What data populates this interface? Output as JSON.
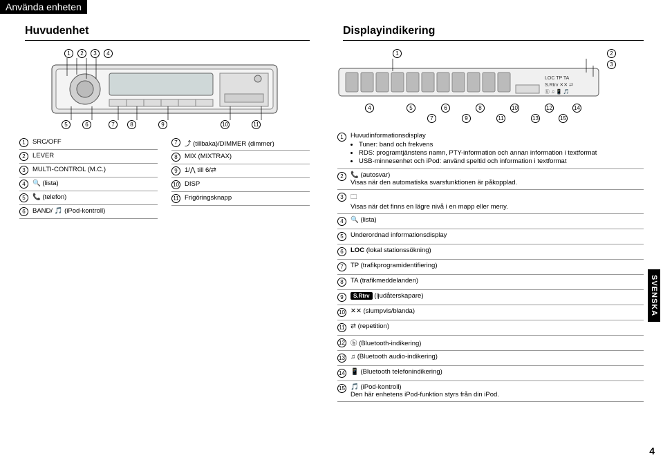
{
  "header": {
    "using_device": "Använda enheten"
  },
  "left": {
    "title": "Huvudenhet",
    "callouts_top": [
      "1",
      "2",
      "3",
      "4"
    ],
    "callouts_bottom": [
      "5",
      "6",
      "7",
      "8",
      "9",
      "10",
      "11"
    ],
    "specs_left": [
      {
        "n": "1",
        "t": "SRC/OFF"
      },
      {
        "n": "2",
        "t": "LEVER"
      },
      {
        "n": "3",
        "t": "MULTI-CONTROL (M.C.)"
      },
      {
        "n": "4",
        "t": "🔍 (lista)"
      },
      {
        "n": "5",
        "t": "📞 (telefon)"
      },
      {
        "n": "6",
        "t": "BAND/ 🎵 (iPod-kontroll)"
      }
    ],
    "specs_right": [
      {
        "n": "7",
        "t": "⤴ (tillbaka)/DIMMER (dimmer)"
      },
      {
        "n": "8",
        "t": "MIX (MIXTRAX)"
      },
      {
        "n": "9",
        "t": "1/⋀ till 6/⇄"
      },
      {
        "n": "10",
        "t": "DISP"
      },
      {
        "n": "11",
        "t": "Frigöringsknapp"
      }
    ]
  },
  "right": {
    "title": "Displayindikering",
    "segments": "88888888888",
    "callouts_top": [
      "1",
      "2",
      "3"
    ],
    "callouts_bottom_u": [
      "4",
      "5",
      "6",
      "8",
      "10",
      "12",
      "14"
    ],
    "callouts_bottom_l": [
      "7",
      "9",
      "11",
      "13",
      "15"
    ],
    "indicators": "LOC TP TA",
    "items": [
      {
        "n": "1",
        "title": "Huvudinformationsdisplay",
        "bullets": [
          "Tuner: band och frekvens",
          "RDS: programtjänstens namn, PTY-information och annan information i textformat",
          "USB-minnesenhet och iPod: använd speltid och information i textformat"
        ]
      },
      {
        "n": "2",
        "title": "📞 (autosvar)",
        "sub": "Visas när den automatiska svarsfunktionen är påkopplad."
      },
      {
        "n": "3",
        "title": "🗀",
        "sub": "Visas när det finns en lägre nivå i en mapp eller meny."
      },
      {
        "n": "4",
        "title": "🔍 (lista)"
      },
      {
        "n": "5",
        "title": "Underordnad informationsdisplay"
      },
      {
        "n": "6",
        "title": "LOC (lokal stationssökning)"
      },
      {
        "n": "7",
        "title": "TP (trafikprogramidentifiering)"
      },
      {
        "n": "8",
        "title": "TA (trafikmeddelanden)"
      },
      {
        "n": "9",
        "title_html": "<span class='srtrv'>S.Rtrv</span> (ljudåterskapare)"
      },
      {
        "n": "10",
        "title": "✕✕ (slumpvis/blanda)"
      },
      {
        "n": "11",
        "title": "⇄ (repetition)"
      },
      {
        "n": "12",
        "title": "ⓑ (Bluetooth-indikering)"
      },
      {
        "n": "13",
        "title": "♫ (Bluetooth audio-indikering)"
      },
      {
        "n": "14",
        "title": "📱 (Bluetooth telefonindikering)"
      },
      {
        "n": "15",
        "title": "🎵 (iPod-kontroll)",
        "sub": "Den här enhetens iPod-funktion styrs från din iPod."
      }
    ]
  },
  "side_tab": "SVENSKA",
  "page_number": "4"
}
